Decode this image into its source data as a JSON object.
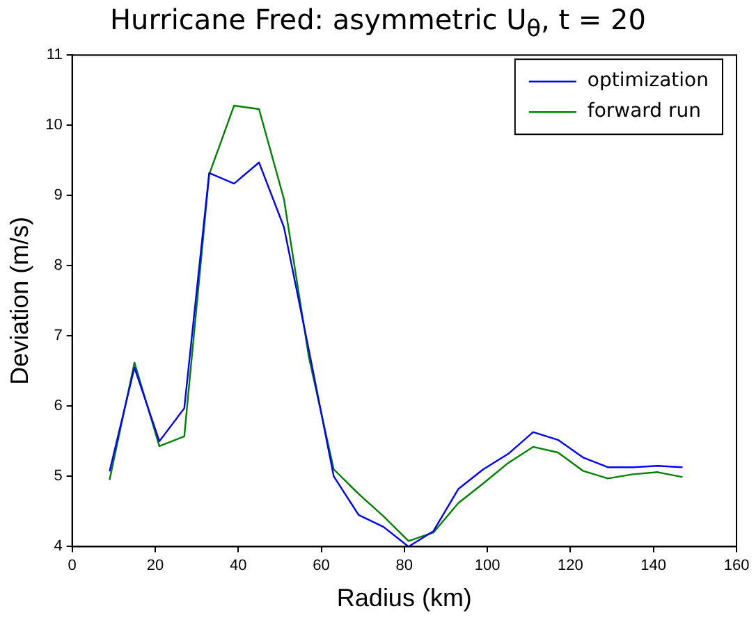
{
  "chart_data": {
    "type": "line",
    "title": "Hurricane Fred: asymmetric U$_{θ}$, t = 20",
    "xlabel": "Radius (km)",
    "ylabel": "Deviation (m/s)",
    "x": [
      9,
      15,
      21,
      27,
      33,
      39,
      45,
      51,
      57,
      63,
      69,
      75,
      81,
      87,
      93,
      99,
      105,
      111,
      117,
      123,
      129,
      135,
      141,
      147
    ],
    "series": [
      {
        "name": "optimization",
        "color": "#0000ff",
        "values": [
          5.07,
          6.55,
          5.5,
          5.97,
          9.32,
          9.17,
          9.47,
          8.55,
          6.8,
          5.0,
          4.45,
          4.28,
          4.0,
          4.22,
          4.82,
          5.1,
          5.32,
          5.63,
          5.52,
          5.27,
          5.13,
          5.13,
          5.15,
          5.13
        ]
      },
      {
        "name": "forward run",
        "color": "#008000",
        "values": [
          4.95,
          6.62,
          5.43,
          5.57,
          9.3,
          10.28,
          10.23,
          8.95,
          6.7,
          5.1,
          4.75,
          4.43,
          4.08,
          4.2,
          4.62,
          4.9,
          5.19,
          5.42,
          5.34,
          5.08,
          4.97,
          5.03,
          5.06,
          4.99
        ]
      }
    ],
    "xlim": [
      0,
      160
    ],
    "xticks": [
      0,
      20,
      40,
      60,
      80,
      100,
      120,
      140,
      160
    ],
    "ylim": [
      4,
      11
    ],
    "yticks": [
      4,
      5,
      6,
      7,
      8,
      9,
      10,
      11
    ],
    "grid": false,
    "legend": "top right",
    "marker": "none",
    "line_style": "solid"
  }
}
